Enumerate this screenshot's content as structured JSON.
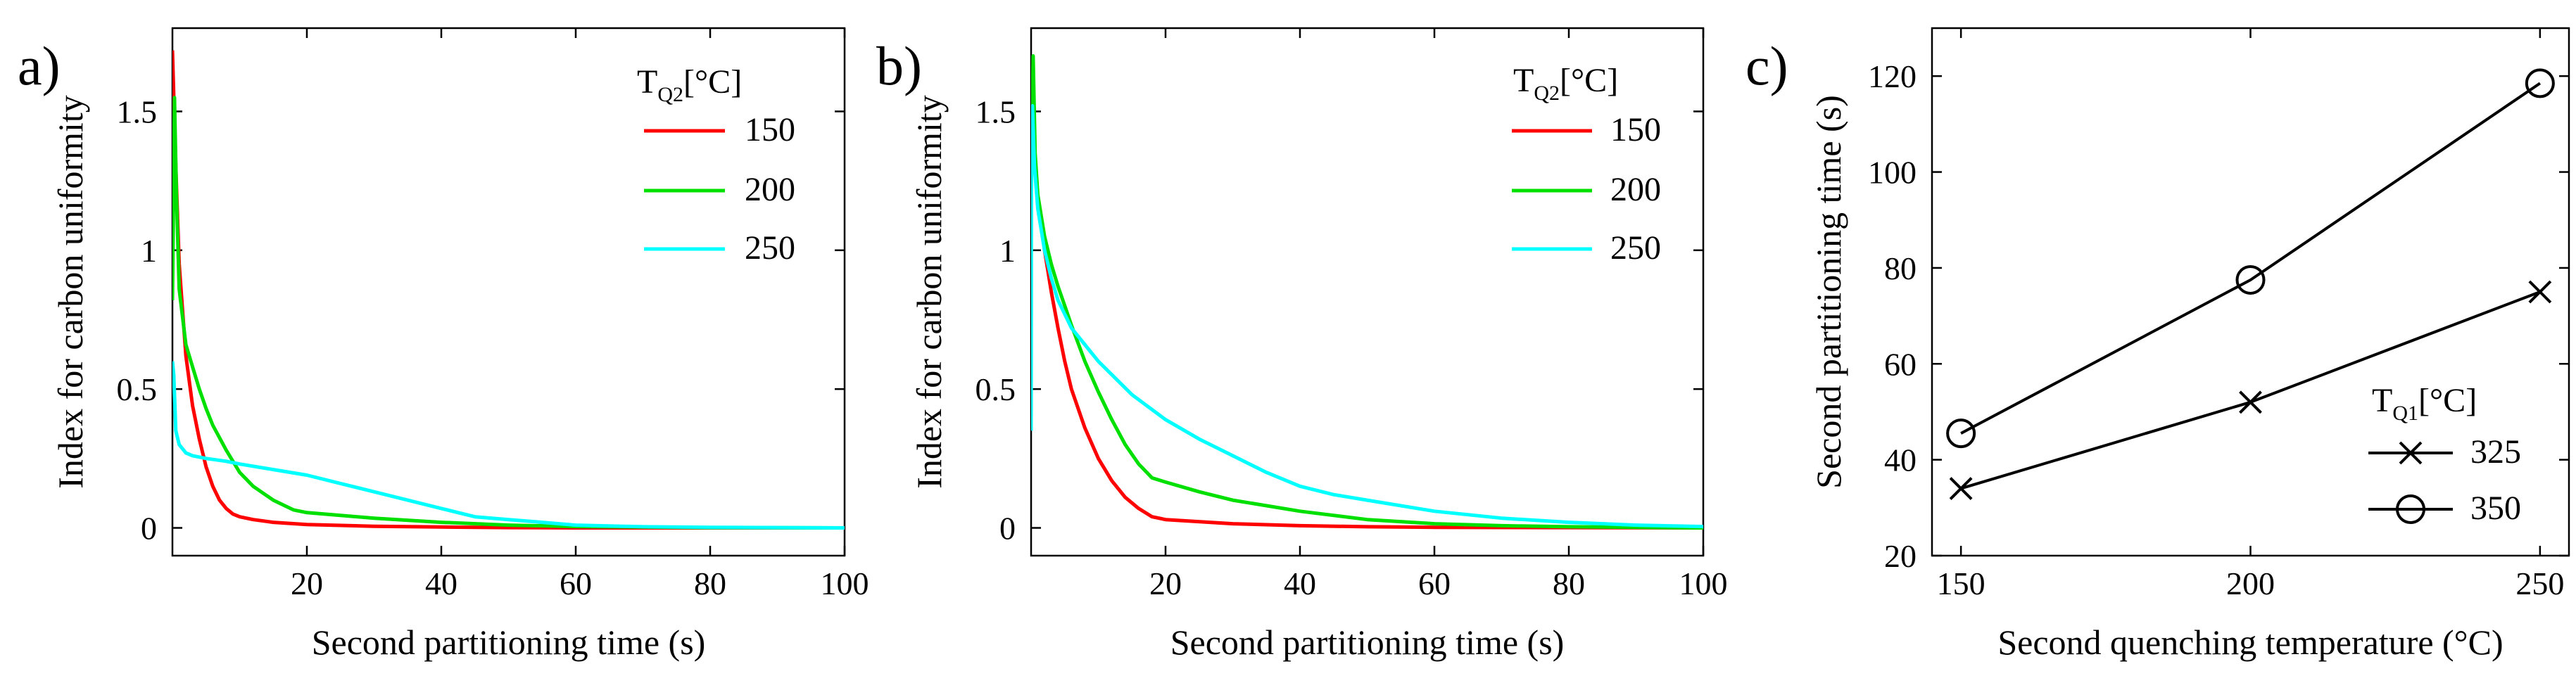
{
  "figure": {
    "description_free": true
  },
  "chart_data": [
    {
      "panel_label": "a)",
      "type": "line",
      "xlabel": "Second partitioning time (s)",
      "ylabel": "Index for carbon uniformity",
      "xlim": [
        0,
        100
      ],
      "ylim": [
        -0.1,
        1.8
      ],
      "xticks": [
        20,
        40,
        60,
        80,
        100
      ],
      "yticks": [
        0,
        0.5,
        1,
        1.5
      ],
      "ytick_labels": [
        "0",
        "0.5",
        "1",
        "1.5"
      ],
      "legend_title_main": "T",
      "legend_title_sub": "Q2",
      "legend_title_unit": "[°C]",
      "legend_position": "top-right",
      "series": [
        {
          "name": "150",
          "color": "#ff0000",
          "x": [
            0,
            0.5,
            1,
            2,
            3,
            4,
            5,
            6,
            7,
            8,
            9,
            10,
            12,
            15,
            20,
            30,
            40,
            50,
            60,
            80,
            100
          ],
          "y": [
            1.72,
            1.3,
            0.95,
            0.62,
            0.44,
            0.32,
            0.22,
            0.15,
            0.1,
            0.07,
            0.05,
            0.04,
            0.03,
            0.02,
            0.012,
            0.006,
            0.003,
            0.001,
            0,
            0,
            0
          ]
        },
        {
          "name": "200",
          "color": "#00e000",
          "x": [
            0,
            0.3,
            0.6,
            1,
            2,
            3,
            4,
            5,
            6,
            8,
            10,
            12,
            15,
            18,
            20,
            25,
            30,
            40,
            50,
            60,
            80,
            100
          ],
          "y": [
            0.82,
            1.55,
            1.2,
            0.86,
            0.66,
            0.58,
            0.5,
            0.43,
            0.37,
            0.28,
            0.2,
            0.15,
            0.1,
            0.065,
            0.055,
            0.045,
            0.035,
            0.02,
            0.01,
            0.005,
            0.001,
            0
          ]
        },
        {
          "name": "250",
          "color": "#00ffff",
          "x": [
            0,
            0.2,
            0.5,
            1,
            2,
            3,
            5,
            8,
            10,
            15,
            20,
            25,
            30,
            35,
            40,
            45,
            50,
            55,
            60,
            70,
            80,
            100
          ],
          "y": [
            0.6,
            0.55,
            0.35,
            0.3,
            0.27,
            0.26,
            0.25,
            0.24,
            0.23,
            0.21,
            0.19,
            0.16,
            0.13,
            0.1,
            0.07,
            0.04,
            0.03,
            0.02,
            0.01,
            0.004,
            0.002,
            0
          ]
        }
      ]
    },
    {
      "panel_label": "b)",
      "type": "line",
      "xlabel": "Second partitioning time (s)",
      "ylabel": "Index for carbon uniformity",
      "xlim": [
        0,
        100
      ],
      "ylim": [
        -0.1,
        1.8
      ],
      "xticks": [
        20,
        40,
        60,
        80,
        100
      ],
      "yticks": [
        0,
        0.5,
        1,
        1.5
      ],
      "ytick_labels": [
        "0",
        "0.5",
        "1",
        "1.5"
      ],
      "legend_title_main": "T",
      "legend_title_sub": "Q2",
      "legend_title_unit": "[°C]",
      "legend_position": "top-right",
      "series": [
        {
          "name": "150",
          "color": "#ff0000",
          "x": [
            0,
            0.3,
            0.6,
            1,
            2,
            3,
            4,
            5,
            6,
            8,
            10,
            12,
            14,
            16,
            18,
            20,
            30,
            40,
            50,
            60,
            80,
            100
          ],
          "y": [
            1.56,
            1.4,
            1.28,
            1.18,
            1.0,
            0.85,
            0.72,
            0.6,
            0.5,
            0.36,
            0.25,
            0.17,
            0.11,
            0.07,
            0.04,
            0.03,
            0.015,
            0.008,
            0.004,
            0.002,
            0.001,
            0
          ]
        },
        {
          "name": "200",
          "color": "#00e000",
          "x": [
            0,
            0.3,
            0.6,
            1,
            2,
            3,
            4,
            5,
            6,
            8,
            10,
            12,
            14,
            16,
            18,
            20,
            25,
            30,
            40,
            50,
            60,
            70,
            80,
            100
          ],
          "y": [
            1.2,
            1.7,
            1.35,
            1.2,
            1.05,
            0.95,
            0.87,
            0.8,
            0.73,
            0.6,
            0.49,
            0.39,
            0.3,
            0.23,
            0.18,
            0.165,
            0.13,
            0.1,
            0.06,
            0.03,
            0.015,
            0.008,
            0.004,
            0
          ]
        },
        {
          "name": "250",
          "color": "#00ffff",
          "x": [
            0,
            0.05,
            0.2,
            0.5,
            1,
            2,
            3,
            4,
            6,
            8,
            10,
            15,
            20,
            25,
            30,
            35,
            40,
            45,
            50,
            60,
            70,
            80,
            90,
            100
          ],
          "y": [
            0.35,
            1.5,
            1.52,
            1.3,
            1.15,
            1.0,
            0.9,
            0.82,
            0.72,
            0.66,
            0.6,
            0.48,
            0.39,
            0.32,
            0.26,
            0.2,
            0.15,
            0.12,
            0.1,
            0.06,
            0.035,
            0.02,
            0.01,
            0.005
          ]
        }
      ]
    },
    {
      "panel_label": "c)",
      "type": "line",
      "xlabel": "Second quenching temperature (°C)",
      "ylabel": "Second partitioning time (s)",
      "xlim": [
        145,
        255
      ],
      "ylim": [
        20,
        130
      ],
      "xticks": [
        150,
        200,
        250
      ],
      "yticks": [
        20,
        40,
        60,
        80,
        100,
        120
      ],
      "ytick_labels": [
        "20",
        "40",
        "60",
        "80",
        "100",
        "120"
      ],
      "legend_title_main": "T",
      "legend_title_sub": "Q1",
      "legend_title_unit": "[°C]",
      "legend_position": "bottom-right",
      "series": [
        {
          "name": "325",
          "marker": "x",
          "color": "#000000",
          "x": [
            150,
            200,
            250
          ],
          "y": [
            34,
            52,
            75
          ]
        },
        {
          "name": "350",
          "marker": "o",
          "color": "#000000",
          "x": [
            150,
            200,
            250
          ],
          "y": [
            45.5,
            77.5,
            118.5
          ]
        }
      ]
    }
  ]
}
